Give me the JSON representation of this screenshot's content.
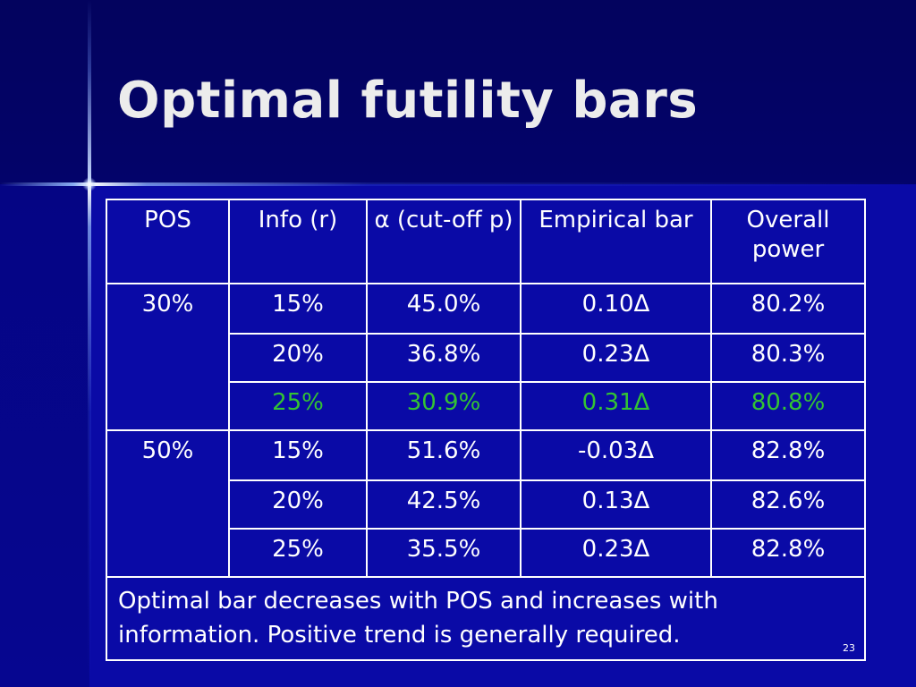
{
  "slide": {
    "title": "Optimal futility bars",
    "page_number": "23"
  },
  "table": {
    "headers": [
      "POS",
      "Info (r)",
      "α (cut-off p)",
      "Empirical bar",
      "Overall power"
    ],
    "groups": [
      {
        "pos": "30%",
        "rows": [
          {
            "info": "15%",
            "alpha": "45.0%",
            "bar": "0.10Δ",
            "power": "80.2%",
            "highlight": false
          },
          {
            "info": "20%",
            "alpha": "36.8%",
            "bar": "0.23Δ",
            "power": "80.3%",
            "highlight": false
          },
          {
            "info": "25%",
            "alpha": "30.9%",
            "bar": "0.31Δ",
            "power": "80.8%",
            "highlight": true
          }
        ]
      },
      {
        "pos": "50%",
        "rows": [
          {
            "info": "15%",
            "alpha": "51.6%",
            "bar": "-0.03Δ",
            "power": "82.8%",
            "highlight": false
          },
          {
            "info": "20%",
            "alpha": "42.5%",
            "bar": "0.13Δ",
            "power": "82.6%",
            "highlight": false
          },
          {
            "info": "25%",
            "alpha": "35.5%",
            "bar": "0.23Δ",
            "power": "82.8%",
            "highlight": false
          }
        ]
      }
    ],
    "note": "Optimal bar decreases with POS and increases with information. Positive trend is generally required."
  },
  "colors": {
    "background": "#07079a",
    "header_band": "#03035e",
    "text": "#ffffff",
    "title_text": "#ececec",
    "highlight_text": "#33c433"
  }
}
